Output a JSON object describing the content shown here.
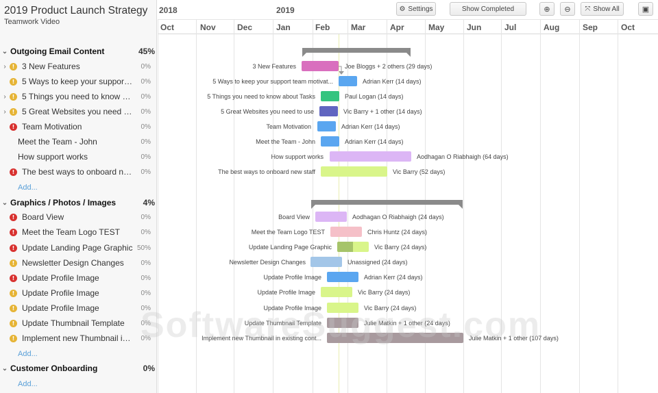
{
  "project": {
    "title": "2019 Product Launch Strategy",
    "subtitle": "Teamwork Video"
  },
  "toolbar": {
    "year_left": "2018",
    "year_right": "2019",
    "settings": "Settings",
    "show_completed": "Show Completed",
    "show_all": "Show All"
  },
  "months": [
    "Oct",
    "Nov",
    "Dec",
    "Jan",
    "Feb",
    "Mar",
    "Apr",
    "May",
    "Jun",
    "Jul",
    "Aug",
    "Sep",
    "Oct"
  ],
  "add_label": "Add...",
  "groups": [
    {
      "name": "Outgoing Email Content",
      "pct": "45%"
    },
    {
      "name": "Graphics / Photos / Images",
      "pct": "4%"
    },
    {
      "name": "Customer Onboarding",
      "pct": "0%"
    }
  ],
  "tasks": [
    {
      "list": "3 New Features",
      "chart": "3 New Features",
      "pct": "0%",
      "status": "warn",
      "caret": true,
      "assignee": "Joe Bloggs + 2 others (29 days)",
      "color": "#d96fbe"
    },
    {
      "list": "5 Ways to keep your support ...",
      "chart": "5 Ways to keep your support team motivat...",
      "pct": "0%",
      "status": "warn",
      "caret": false,
      "assignee": "Adrian Kerr (14 days)",
      "color": "#5aa6f0"
    },
    {
      "list": "5 Things you need to know a...",
      "chart": "5 Things you need to know about Tasks",
      "pct": "0%",
      "status": "warn",
      "caret": true,
      "assignee": "Paul Logan (14 days)",
      "color": "#35c47f"
    },
    {
      "list": "5 Great Websites you need to...",
      "chart": "5 Great Websites you need to use",
      "pct": "0%",
      "status": "warn",
      "caret": true,
      "assignee": "Vic Barry + 1 other (14 days)",
      "color": "#6065c0"
    },
    {
      "list": "Team Motivation",
      "chart": "Team Motivation",
      "pct": "0%",
      "status": "err",
      "caret": false,
      "assignee": "Adrian Kerr (14 days)",
      "color": "#5aa6f0"
    },
    {
      "list": "Meet the Team - John",
      "chart": "Meet the Team - John",
      "pct": "0%",
      "status": "none",
      "caret": false,
      "assignee": "Adrian Kerr (14 days)",
      "color": "#5aa6f0"
    },
    {
      "list": "How support works",
      "chart": "How support works",
      "pct": "0%",
      "status": "none",
      "caret": false,
      "assignee": "Aodhagan O Riabhaigh (64 days)",
      "color": "#dcb6f5"
    },
    {
      "list": "The best ways to onboard ne...",
      "chart": "The best ways to onboard new staff",
      "pct": "0%",
      "status": "err",
      "caret": false,
      "assignee": "Vic Barry (52 days)",
      "color": "#d9f58a"
    },
    {
      "list": "Board View",
      "chart": "Board View",
      "pct": "0%",
      "status": "err",
      "caret": false,
      "assignee": "Aodhagan O Riabhaigh (24 days)",
      "color": "#dcb6f5"
    },
    {
      "list": "Meet the Team Logo TEST",
      "chart": "Meet the Team Logo TEST",
      "pct": "0%",
      "status": "err",
      "caret": false,
      "assignee": "Chris Huntz (24 days)",
      "color": "#f5c0c8"
    },
    {
      "list": "Update Landing Page Graphic",
      "chart": "Update Landing Page Graphic",
      "pct": "50%",
      "status": "err",
      "caret": false,
      "assignee": "Vic Barry (24 days)",
      "color": "#d9f58a",
      "progress": 0.5,
      "progress_color": "#a6c46a"
    },
    {
      "list": "Newsletter Design Changes",
      "chart": "Newsletter Design Changes",
      "pct": "0%",
      "status": "warn",
      "caret": false,
      "assignee": "Unassigned (24 days)",
      "color": "#a3c6e8"
    },
    {
      "list": "Update Profile Image",
      "chart": "Update Profile Image",
      "pct": "0%",
      "status": "err",
      "caret": false,
      "assignee": "Adrian Kerr (24 days)",
      "color": "#5aa6f0"
    },
    {
      "list": "Update Profile Image",
      "chart": "Update Profile Image",
      "pct": "0%",
      "status": "warn",
      "caret": false,
      "assignee": "Vic Barry (24 days)",
      "color": "#d9f58a"
    },
    {
      "list": "Update Profile Image",
      "chart": "Update Profile Image",
      "pct": "0%",
      "status": "warn",
      "caret": false,
      "assignee": "Vic Barry (24 days)",
      "color": "#d9f58a"
    },
    {
      "list": "Update Thumbnail Template",
      "chart": "Update Thumbnail Template",
      "pct": "0%",
      "status": "warn",
      "caret": false,
      "assignee": "Julie Matkin + 1 other (24 days)",
      "color": "#a89a9e"
    },
    {
      "list": "Implement new Thumbnail in...",
      "chart": "Implement new Thumbnail in existing cont...",
      "pct": "0%",
      "status": "warn",
      "caret": false,
      "assignee": "Julie Matkin + 1 other (107 days)",
      "color": "#a89a9e"
    }
  ],
  "watermark": "SoftwareSuggest.com"
}
